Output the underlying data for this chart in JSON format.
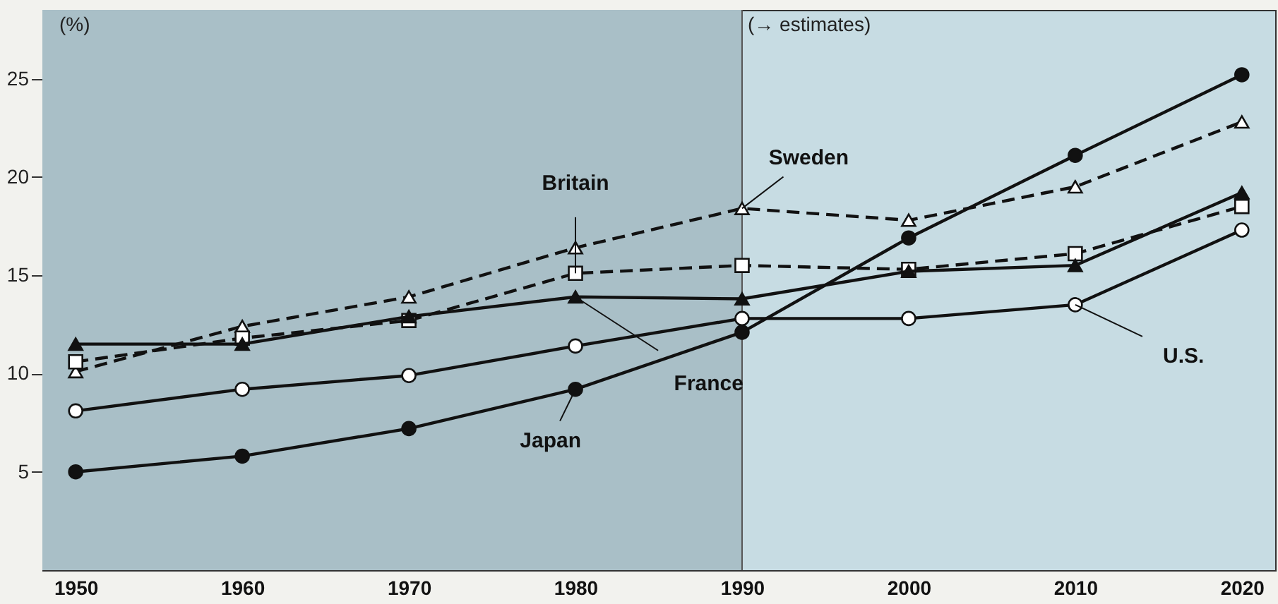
{
  "chart_data": {
    "type": "line",
    "ylabel": "(%)",
    "x": [
      1950,
      1960,
      1970,
      1980,
      1990,
      2000,
      2010,
      2020
    ],
    "series": [
      {
        "name": "Japan",
        "color": "#111111",
        "marker": "circle",
        "line_style": "solid",
        "values": [
          5.0,
          5.8,
          7.2,
          9.2,
          12.1,
          16.9,
          21.1,
          25.2
        ]
      },
      {
        "name": "U.S.",
        "color": "#111111",
        "marker": "circle",
        "line_style": "solid",
        "values": [
          8.1,
          9.2,
          9.9,
          11.4,
          12.8,
          12.8,
          13.5,
          17.3
        ]
      },
      {
        "name": "Sweden",
        "color": "#111111",
        "marker": "triangle",
        "line_style": "dashed",
        "values": [
          10.1,
          12.4,
          13.9,
          16.4,
          18.4,
          17.8,
          19.5,
          22.8
        ]
      },
      {
        "name": "Britain",
        "color": "#111111",
        "marker": "square",
        "line_style": "dashed",
        "values": [
          10.6,
          11.8,
          12.7,
          15.1,
          15.5,
          15.3,
          16.1,
          18.5
        ]
      },
      {
        "name": "France",
        "color": "#111111",
        "marker": "triangle",
        "line_style": "solid",
        "values": [
          11.5,
          11.5,
          12.9,
          13.9,
          13.8,
          15.2,
          15.5,
          19.2
        ]
      }
    ],
    "xlim": [
      1948,
      2022
    ],
    "ylim": [
      0,
      28.5
    ],
    "xticks": [
      1950,
      1960,
      1970,
      1980,
      1990,
      2000,
      2010,
      2020
    ],
    "yticks": [
      5,
      10,
      15,
      20,
      25
    ],
    "ref_lines": [
      {
        "axis": "x",
        "value": 1990,
        "label": "(→ estimates)",
        "color": "#555555"
      }
    ],
    "bands": [
      {
        "axis": "x",
        "from": 1948,
        "to": 1990,
        "color": "#a9bfc7"
      }
    ],
    "grid": false
  }
}
